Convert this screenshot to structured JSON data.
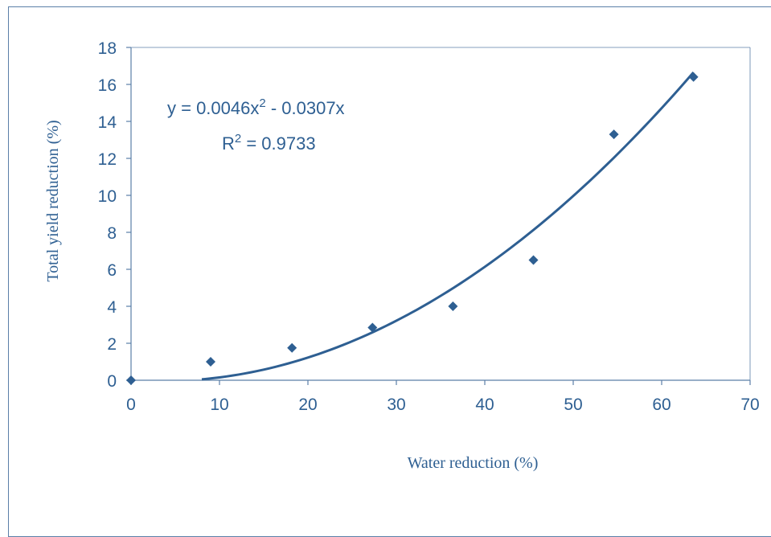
{
  "chart_data": {
    "type": "scatter",
    "xlabel": "Water reduction (%)",
    "ylabel": "Total yield reduction (%)",
    "xlim": [
      0,
      70
    ],
    "ylim": [
      0,
      18
    ],
    "x_ticks": [
      "0",
      "10",
      "20",
      "30",
      "40",
      "50",
      "60",
      "70"
    ],
    "y_ticks": [
      "0",
      "2",
      "4",
      "6",
      "8",
      "10",
      "12",
      "14",
      "16",
      "18"
    ],
    "grid": false,
    "series": [
      {
        "x": [
          0,
          9,
          18.2,
          27.3,
          36.4,
          45.5,
          54.6,
          63.6
        ],
        "y": [
          0,
          1.0,
          1.75,
          2.85,
          4.0,
          6.5,
          13.3,
          16.4
        ]
      }
    ],
    "trendline": {
      "type": "polynomial",
      "a": 0.0046,
      "b": -0.0307,
      "x_range": [
        8,
        63.6
      ]
    },
    "equation_text": "y = 0.0046x",
    "equation_exp": "2",
    "equation_rest": " - 0.0307x",
    "r2_prefix": "R",
    "r2_exp": "2",
    "r2_rest": " = 0.9733",
    "colors": {
      "axis": "#5b7fa8",
      "marker": "#2e5f92",
      "trendline": "#2e5f92",
      "text": "#2e5f92"
    }
  }
}
